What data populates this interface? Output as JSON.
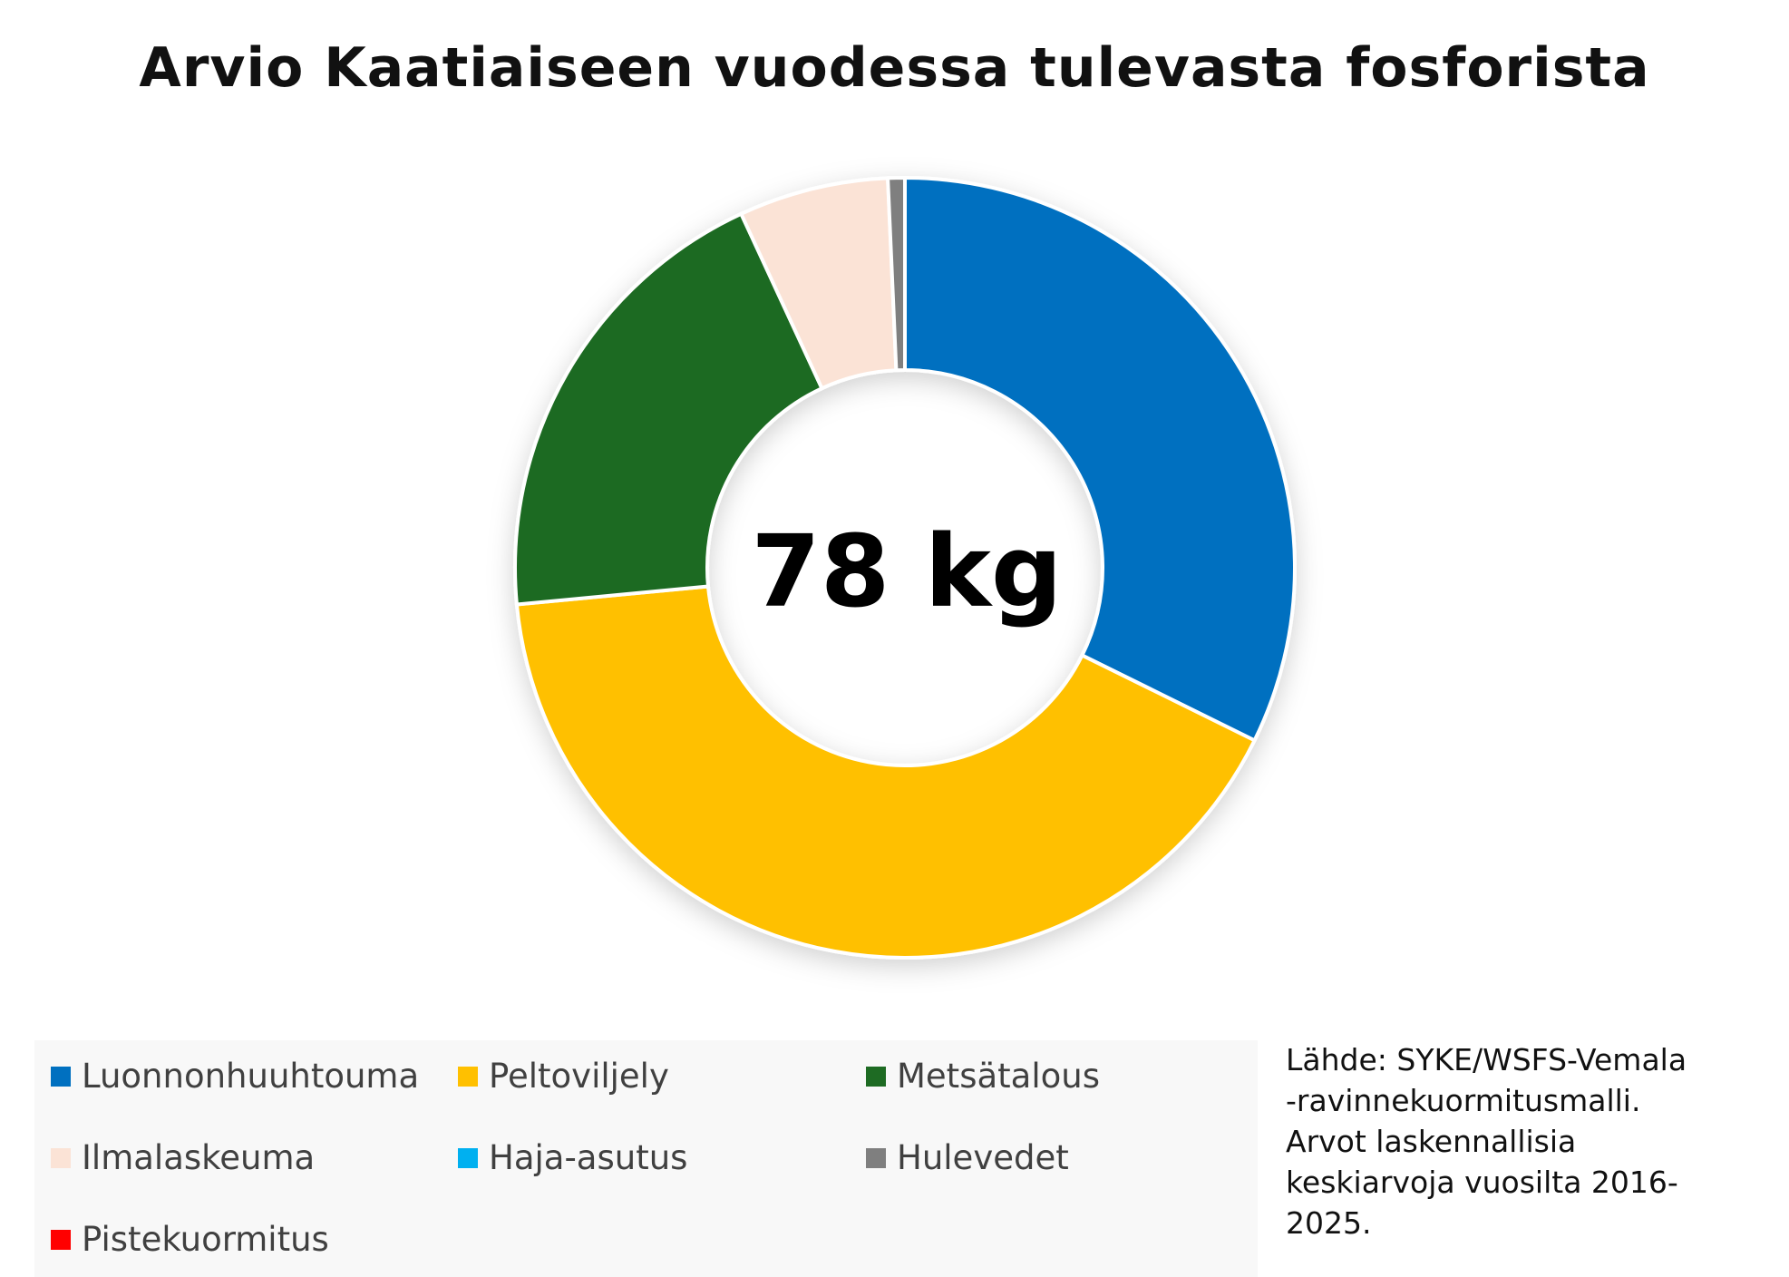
{
  "chart_data": {
    "type": "pie",
    "variant": "donut",
    "title": "Arvio Kaatiaiseen vuodessa tulevasta fosforista",
    "center_label": "78 kg",
    "legend_position": "bottom",
    "series": [
      {
        "name": "Luonnonhuuhtouma",
        "value": 32.3,
        "color": "#0070c0"
      },
      {
        "name": "Peltoviljely",
        "value": 41.2,
        "color": "#ffc000"
      },
      {
        "name": "Metsätalous",
        "value": 19.6,
        "color": "#1e6b23"
      },
      {
        "name": "Ilmalaskeuma",
        "value": 6.2,
        "color": "#fbe3d6"
      },
      {
        "name": "Haja-asutus",
        "value": 0,
        "color": "#00b0f0"
      },
      {
        "name": "Hulevedet",
        "value": 0.7,
        "color": "#7f7f7f"
      },
      {
        "name": "Pistekuormitus",
        "value": 0,
        "color": "#ff0000"
      }
    ]
  },
  "source": {
    "lines": [
      "Lähde: SYKE/WSFS-Vemala",
      "-ravinnekuormitusmalli.",
      "Arvot laskennallisia",
      "keskiarvoja vuosilta 2016-",
      "2025."
    ]
  }
}
